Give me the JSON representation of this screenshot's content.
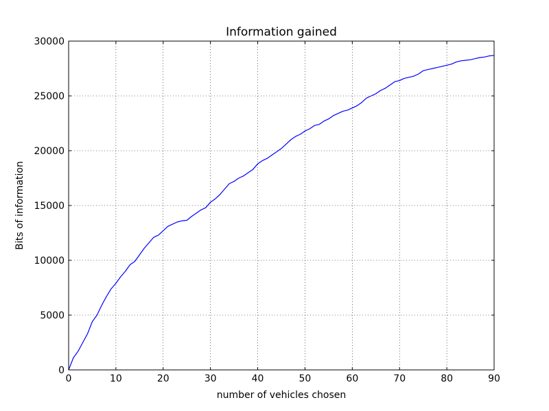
{
  "chart_data": {
    "type": "line",
    "title": "Information gained",
    "xlabel": "number of vehicles chosen",
    "ylabel": "Bits of information",
    "xlim": [
      0,
      90
    ],
    "ylim": [
      0,
      30000
    ],
    "xticks": [
      0,
      10,
      20,
      30,
      40,
      50,
      60,
      70,
      80,
      90
    ],
    "yticks": [
      0,
      5000,
      10000,
      15000,
      20000,
      25000,
      30000
    ],
    "grid": true,
    "series": [
      {
        "color": "#0000ff",
        "x": [
          0,
          1,
          2,
          3,
          4,
          5,
          6,
          7,
          8,
          9,
          10,
          11,
          12,
          13,
          14,
          15,
          16,
          17,
          18,
          19,
          20,
          21,
          22,
          23,
          24,
          25,
          26,
          27,
          28,
          29,
          30,
          31,
          32,
          33,
          34,
          35,
          36,
          37,
          38,
          39,
          40,
          41,
          42,
          43,
          44,
          45,
          46,
          47,
          48,
          49,
          50,
          51,
          52,
          53,
          54,
          55,
          56,
          57,
          58,
          59,
          60,
          61,
          62,
          63,
          64,
          65,
          66,
          67,
          68,
          69,
          70,
          71,
          72,
          73,
          74,
          75,
          76,
          77,
          78,
          79,
          80,
          81,
          82,
          83,
          84,
          85,
          86,
          87,
          88,
          89,
          90
        ],
        "y": [
          0,
          1100,
          1700,
          2500,
          3300,
          4400,
          5000,
          5900,
          6700,
          7400,
          7900,
          8500,
          9000,
          9600,
          9900,
          10500,
          11100,
          11600,
          12100,
          12300,
          12700,
          13100,
          13300,
          13500,
          13600,
          13650,
          14000,
          14300,
          14600,
          14800,
          15300,
          15600,
          16000,
          16500,
          17000,
          17200,
          17500,
          17700,
          18000,
          18300,
          18800,
          19100,
          19300,
          19600,
          19900,
          20200,
          20600,
          21000,
          21300,
          21500,
          21800,
          22000,
          22300,
          22400,
          22700,
          22900,
          23200,
          23400,
          23600,
          23700,
          23900,
          24100,
          24400,
          24800,
          25000,
          25200,
          25500,
          25700,
          26000,
          26300,
          26400,
          26600,
          26700,
          26800,
          27000,
          27300,
          27400,
          27500,
          27600,
          27700,
          27800,
          27900,
          28100,
          28200,
          28250,
          28300,
          28400,
          28500,
          28550,
          28650,
          28700
        ]
      }
    ]
  }
}
